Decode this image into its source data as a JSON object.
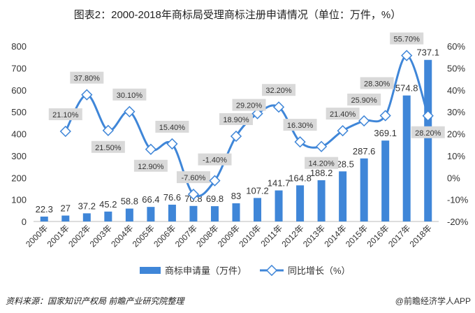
{
  "chart_data": {
    "type": "bar+line",
    "title": "图表2：2000-2018年商标局受理商标注册申请情况（单位：万件，%）",
    "categories": [
      "2000年",
      "2001年",
      "2002年",
      "2003年",
      "2004年",
      "2005年",
      "2006年",
      "2007年",
      "2008年",
      "2009年",
      "2010年",
      "2011年",
      "2012年",
      "2013年",
      "2014年",
      "2015年",
      "2016年",
      "2017年",
      "2018年"
    ],
    "series": [
      {
        "name": "商标申请量（万件）",
        "type": "bar",
        "axis": "left",
        "color": "#3f86d8",
        "values": [
          22.3,
          27,
          37.2,
          45.2,
          58.8,
          66.4,
          76.6,
          70.8,
          69.8,
          83,
          107.2,
          141.7,
          164.8,
          188.2,
          228.5,
          287.6,
          369.1,
          574.8,
          737.1
        ],
        "labels": [
          "22.3",
          "27",
          "37.2",
          "45.2",
          "58.8",
          "66.4",
          "76.6",
          "70.8",
          "69.8",
          "83",
          "107.2",
          "141.7",
          "164.8",
          "188.2",
          "228.5",
          "287.6",
          "369.1",
          "574.8",
          "737.1"
        ]
      },
      {
        "name": "同比增长（%）",
        "type": "line",
        "axis": "right",
        "color": "#3f86d8",
        "values": [
          null,
          21.1,
          37.8,
          21.5,
          30.1,
          12.9,
          15.4,
          -7.6,
          -1.4,
          18.9,
          29.2,
          32.2,
          16.3,
          14.2,
          21.4,
          25.9,
          28.3,
          55.7,
          28.2
        ],
        "labels": [
          null,
          "21.10%",
          "37.80%",
          "21.50%",
          "30.10%",
          "12.90%",
          "15.40%",
          "-7.60%",
          "-1.40%",
          "18.90%",
          "29.20%",
          "32.20%",
          "16.30%",
          "14.20%",
          "21.40%",
          "25.90%",
          "28.30%",
          "55.70%",
          "28.20%"
        ]
      }
    ],
    "ylim_left": [
      0,
      800
    ],
    "yticks_left": [
      "0",
      "100",
      "200",
      "300",
      "400",
      "500",
      "600",
      "700",
      "800"
    ],
    "ylim_right": [
      -20,
      60
    ],
    "yticks_right": [
      "-20%",
      "-10%",
      "0%",
      "10%",
      "20%",
      "30%",
      "40%",
      "50%",
      "60%"
    ],
    "grid": false,
    "legend": "bottom"
  },
  "footer": {
    "source": "资料来源：国家知识产权局 前瞻产业研究院整理",
    "brand": "@前瞻经济学人APP"
  }
}
